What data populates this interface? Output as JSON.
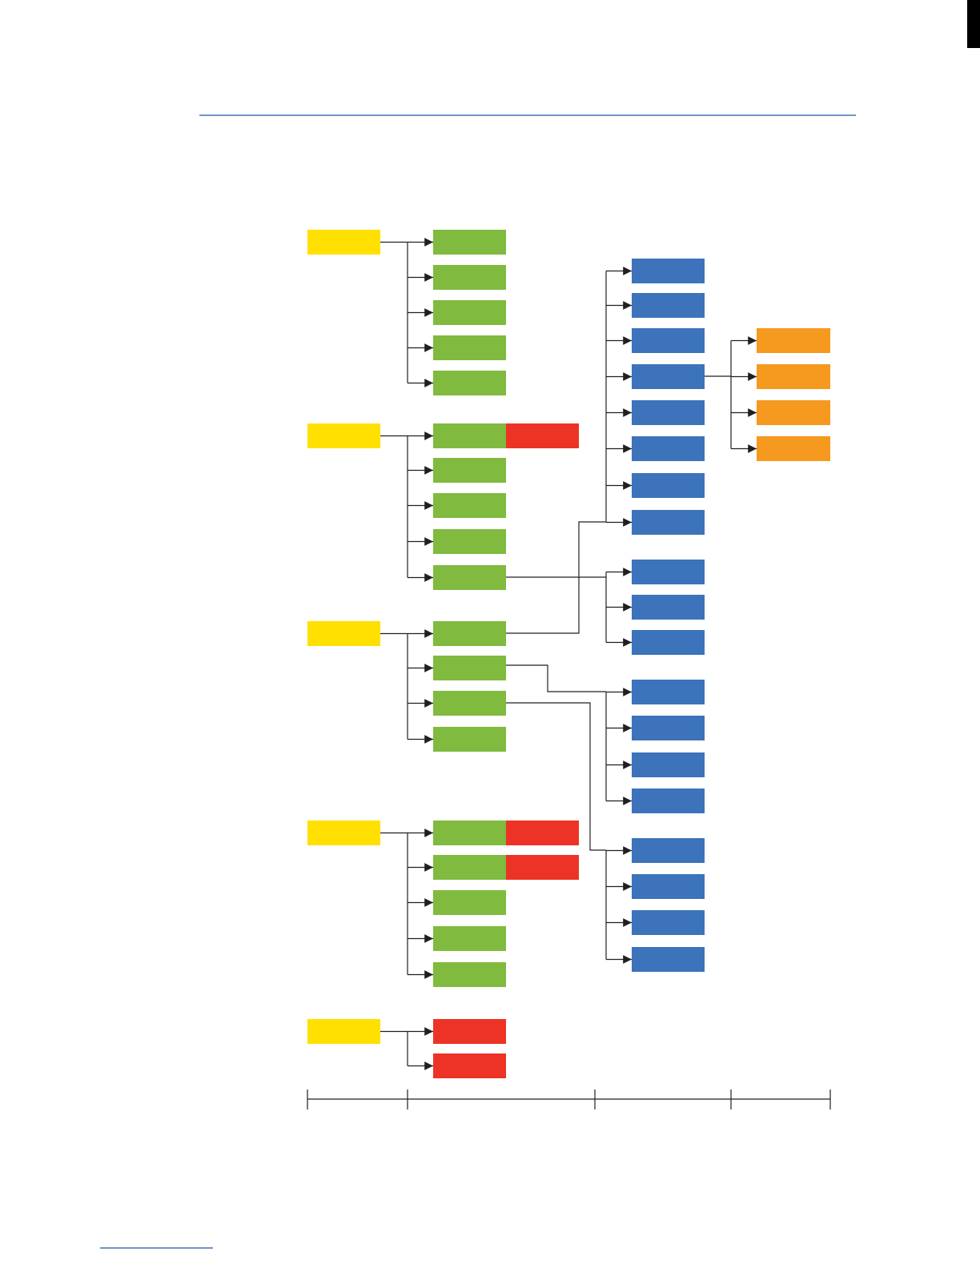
{
  "colors": {
    "level1": "#FFE000",
    "level2": "#80BA3E",
    "level2_flag": "#EC3325",
    "level3": "#3C73BB",
    "level4": "#F5991F",
    "header_rule": "#3C73BB",
    "footer_rule": "#3C73BB",
    "connector": "#231F20"
  },
  "groups": [
    {
      "level1_count": 1,
      "level2_count": 5,
      "flagged_items": []
    },
    {
      "level1_count": 1,
      "level2_count": 5,
      "flagged_items": [
        1
      ]
    },
    {
      "level1_count": 1,
      "level2_count": 4,
      "flagged_items": []
    },
    {
      "level1_count": 1,
      "level2_count": 5,
      "flagged_items": [
        1,
        2
      ]
    },
    {
      "level1_count": 1,
      "level2_count": 2,
      "flagged_items": [],
      "all_flagged": true
    }
  ],
  "level3_clusters": [
    {
      "count": 8
    },
    {
      "count": 3
    },
    {
      "count": 4
    },
    {
      "count": 4
    }
  ],
  "level4_cluster": {
    "count": 4
  },
  "scale_segments": 4
}
